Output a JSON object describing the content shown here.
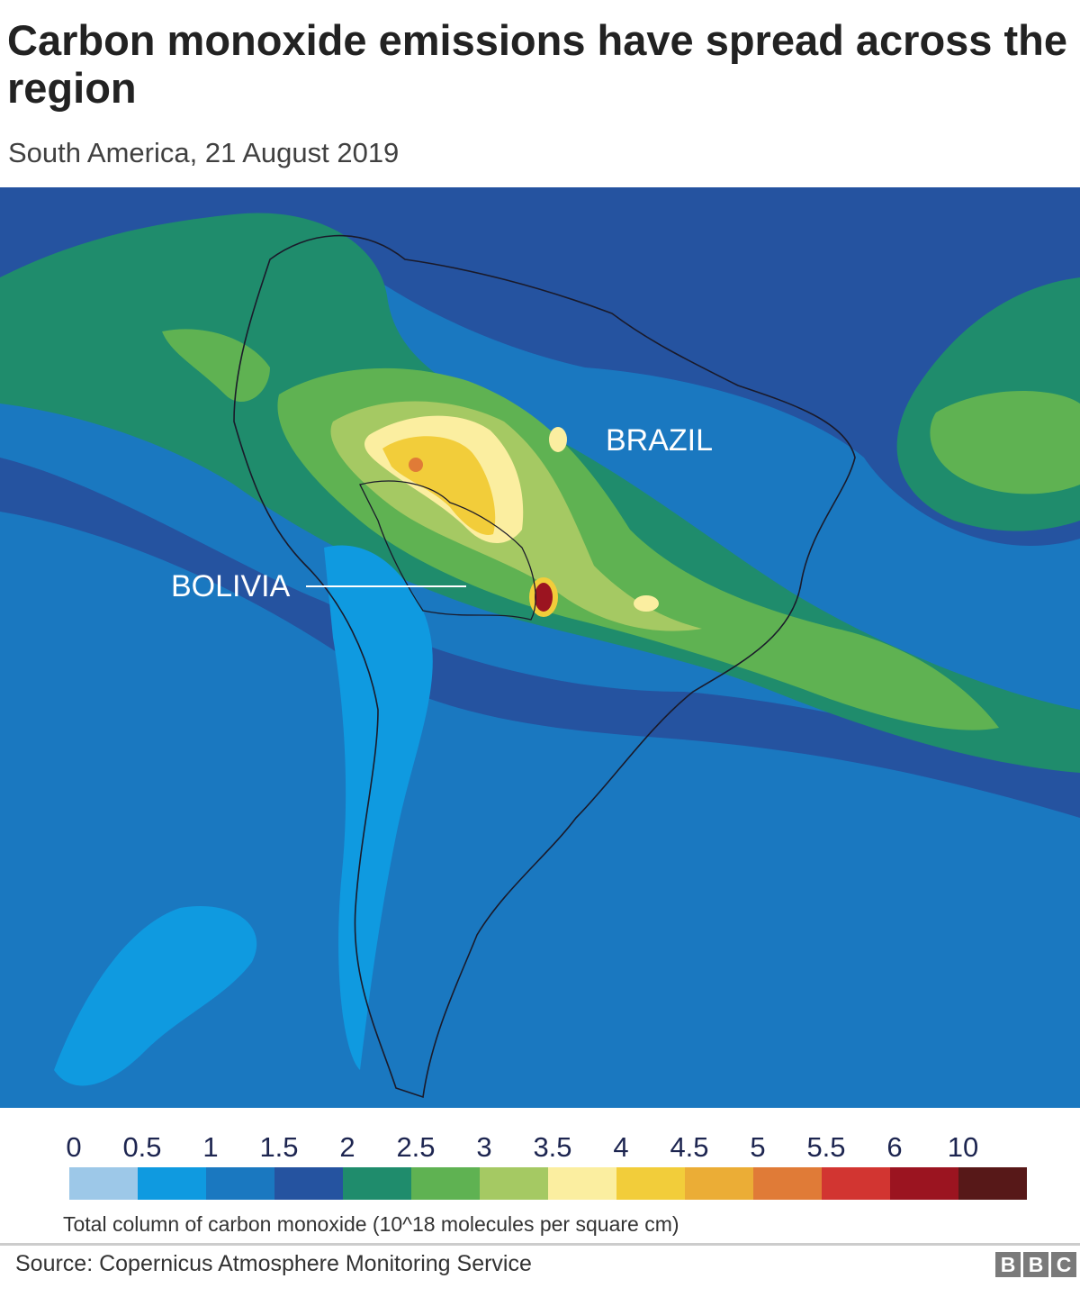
{
  "title": "Carbon monoxide emissions have spread across the region",
  "subtitle": "South America, 21 August 2019",
  "map": {
    "labels": {
      "brazil": "BRAZIL",
      "bolivia": "BOLIVIA"
    }
  },
  "legend": {
    "ticks": [
      "0",
      "0.5",
      "1",
      "1.5",
      "2",
      "2.5",
      "3",
      "3.5",
      "4",
      "4.5",
      "5",
      "5.5",
      "6",
      "10"
    ],
    "colors": [
      "#9dc8e8",
      "#0f9ae0",
      "#1a78c0",
      "#2553a0",
      "#1f8c6c",
      "#5fb252",
      "#a5c963",
      "#fbeea0",
      "#f2cd3a",
      "#ebad36",
      "#e07b37",
      "#d23531",
      "#9b1420",
      "#571818"
    ],
    "unit": "Total column of carbon monoxide (10^18 molecules per square cm)"
  },
  "footer": {
    "source": "Source: Copernicus Atmosphere Monitoring Service",
    "logo": "BBC"
  }
}
